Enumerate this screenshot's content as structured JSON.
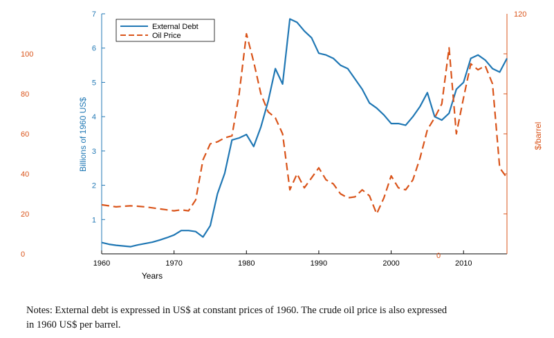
{
  "chart_data": {
    "type": "line",
    "xlabel": "Years",
    "ylabel_left": "Billions of 1960 US$",
    "ylabel_right": "$/barrel",
    "xlim": [
      1960,
      2016
    ],
    "ylim_left": [
      0,
      7
    ],
    "ylim_right": [
      0,
      120
    ],
    "x_ticks": [
      1960,
      1970,
      1980,
      1990,
      2000,
      2010
    ],
    "y_left_ticks": [
      1,
      2,
      3,
      4,
      5,
      6,
      7
    ],
    "y_right_ticks": [
      0,
      120
    ],
    "y_oil_outer_ticks": [
      0,
      20,
      40,
      60,
      80,
      100
    ],
    "grid": false,
    "legend_position": "top-left",
    "colors": {
      "debt": "#1f77b4",
      "oil": "#d95319"
    },
    "series": [
      {
        "name": "External Debt",
        "axis": "left",
        "style": "solid",
        "x": [
          1960,
          1961,
          1962,
          1963,
          1964,
          1965,
          1966,
          1967,
          1968,
          1969,
          1970,
          1971,
          1972,
          1973,
          1974,
          1975,
          1976,
          1977,
          1978,
          1979,
          1980,
          1981,
          1982,
          1983,
          1984,
          1985,
          1986,
          1987,
          1988,
          1989,
          1990,
          1991,
          1992,
          1993,
          1994,
          1995,
          1996,
          1997,
          1998,
          1999,
          2000,
          2001,
          2002,
          2003,
          2004,
          2005,
          2006,
          2007,
          2008,
          2009,
          2010,
          2011,
          2012,
          2013,
          2014,
          2015,
          2016
        ],
        "values": [
          0.33,
          0.28,
          0.25,
          0.23,
          0.21,
          0.26,
          0.3,
          0.34,
          0.4,
          0.47,
          0.55,
          0.68,
          0.68,
          0.65,
          0.49,
          0.82,
          1.75,
          2.35,
          3.32,
          3.38,
          3.48,
          3.13,
          3.7,
          4.45,
          5.4,
          4.95,
          6.85,
          6.75,
          6.5,
          6.3,
          5.85,
          5.8,
          5.7,
          5.5,
          5.4,
          5.1,
          4.8,
          4.4,
          4.25,
          4.05,
          3.8,
          3.8,
          3.75,
          4.0,
          4.3,
          4.7,
          4.0,
          3.9,
          4.1,
          4.8,
          5.0,
          5.7,
          5.8,
          5.65,
          5.4,
          5.3,
          5.7
        ]
      },
      {
        "name": "Oil Price",
        "axis": "right",
        "style": "dashed",
        "x": [
          1960,
          1961,
          1962,
          1963,
          1964,
          1965,
          1966,
          1967,
          1968,
          1969,
          1970,
          1971,
          1972,
          1973,
          1974,
          1975,
          1976,
          1977,
          1978,
          1979,
          1980,
          1981,
          1982,
          1983,
          1984,
          1985,
          1986,
          1987,
          1988,
          1989,
          1990,
          1991,
          1992,
          1993,
          1994,
          1995,
          1996,
          1997,
          1998,
          1999,
          2000,
          2001,
          2002,
          2003,
          2004,
          2005,
          2006,
          2007,
          2008,
          2009,
          2010,
          2011,
          2012,
          2013,
          2014,
          2015,
          2016
        ],
        "values": [
          24.5,
          24,
          23.5,
          23.8,
          24,
          23.8,
          23.5,
          23,
          22.5,
          22,
          21.5,
          22,
          21.5,
          27,
          47,
          55,
          56,
          58,
          59,
          80,
          110,
          96,
          80,
          71,
          68,
          60,
          32,
          40,
          33,
          38,
          43,
          37,
          35,
          30,
          28,
          28.5,
          32,
          29,
          20,
          28,
          39,
          33,
          32,
          37,
          48,
          62,
          68,
          75,
          103,
          60,
          78,
          95,
          92,
          94,
          85,
          43,
          38
        ]
      }
    ]
  },
  "notes": {
    "line1": "Notes:  External debt is expressed in US$ at constant prices of 1960.  The crude oil price is also expressed",
    "line2": "in 1960 US$ per barrel."
  }
}
